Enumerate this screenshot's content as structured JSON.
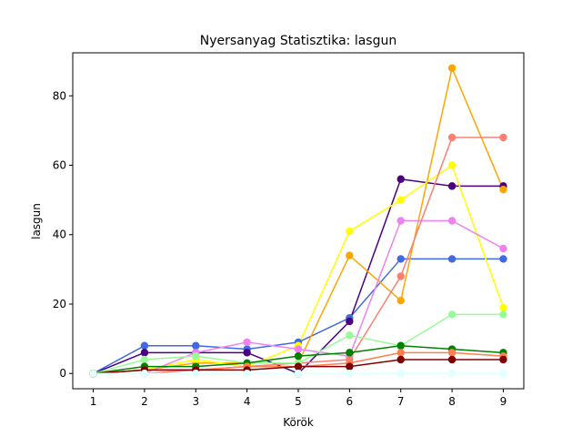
{
  "chart_data": {
    "type": "line",
    "title": "Nyersanyag Statisztika: lasgun",
    "xlabel": "Körök",
    "ylabel": "lasgun",
    "x": [
      1,
      2,
      3,
      4,
      5,
      6,
      7,
      8,
      9
    ],
    "xlim": [
      0.6,
      9.4
    ],
    "ylim": [
      -4.4,
      92.4
    ],
    "xticks": [
      1,
      2,
      3,
      4,
      5,
      6,
      7,
      8,
      9
    ],
    "yticks": [
      0,
      20,
      40,
      60,
      80
    ],
    "grid": false,
    "legend": "none",
    "series": [
      {
        "color": "#4169e1",
        "values": [
          0,
          8,
          8,
          7,
          9,
          16,
          33,
          33,
          33
        ]
      },
      {
        "color": "#4b0082",
        "values": [
          0,
          6,
          6,
          6,
          0,
          15,
          56,
          54,
          54
        ]
      },
      {
        "color": "#ffa500",
        "values": [
          0,
          1,
          3,
          3,
          3,
          34,
          21,
          88,
          53
        ]
      },
      {
        "color": "#ffff00",
        "values": [
          0,
          1,
          4,
          2,
          8,
          41,
          50,
          60,
          19
        ]
      },
      {
        "color": "#ee82ee",
        "values": [
          0,
          0,
          6,
          9,
          7,
          5,
          44,
          44,
          36
        ]
      },
      {
        "color": "#fa8072",
        "values": [
          0,
          0,
          1,
          2,
          3,
          4,
          28,
          68,
          68
        ]
      },
      {
        "color": "#98fb98",
        "values": [
          0,
          4,
          5,
          3,
          3,
          11,
          8,
          17,
          17
        ]
      },
      {
        "color": "#008000",
        "values": [
          0,
          2,
          2,
          3,
          5,
          6,
          8,
          7,
          6
        ]
      },
      {
        "color": "#ff7f50",
        "values": [
          0,
          1,
          1,
          2,
          2,
          3,
          6,
          6,
          5
        ]
      },
      {
        "color": "#800000",
        "values": [
          0,
          1,
          1,
          1,
          2,
          2,
          4,
          4,
          4
        ]
      },
      {
        "color": "#e0ffff",
        "values": [
          0,
          0,
          0,
          0,
          0,
          0,
          0,
          0,
          0
        ]
      }
    ]
  }
}
